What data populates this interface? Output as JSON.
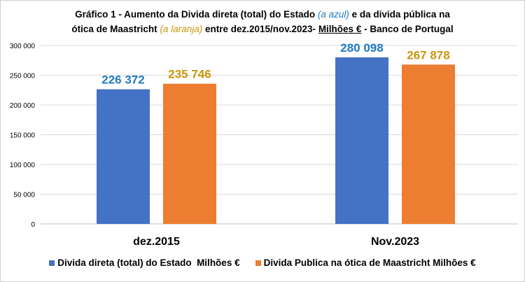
{
  "title": {
    "part1": "Gráfico 1 - Aumento da Divida direta (total) do Estado ",
    "blue_note": "(a azul)",
    "part2": "  e da divida pública na",
    "part3": "ótica de Maastricht ",
    "orange_note": "(a laranja)",
    "part4": " entre dez.2015/nov.2023- ",
    "units": "Milhões €",
    "part5": " - Banco de Portugal"
  },
  "chart_data": {
    "type": "bar",
    "categories": [
      "dez.2015",
      "Nov.2023"
    ],
    "series": [
      {
        "name": "Divida direta (total) do Estado  Milhões €",
        "color": "#4472c4",
        "label_color": "#1f7ac4",
        "values": [
          226372,
          280098
        ],
        "labels": [
          "226 372",
          "280 098"
        ]
      },
      {
        "name": "Divida Publica na ótica de Maastricht Milhões €",
        "color": "#ed7d31",
        "label_color": "#c9960c",
        "values": [
          235746,
          267878
        ],
        "labels": [
          "235 746",
          "267 878"
        ]
      }
    ],
    "ylim": [
      0,
      300000
    ],
    "yticks": [
      0,
      50000,
      100000,
      150000,
      200000,
      250000,
      300000
    ],
    "ytick_labels": [
      "0",
      "50 000",
      "100 000",
      "150 000",
      "200 000",
      "250 000",
      "300 000"
    ],
    "grid": true,
    "legend": "bottom"
  }
}
